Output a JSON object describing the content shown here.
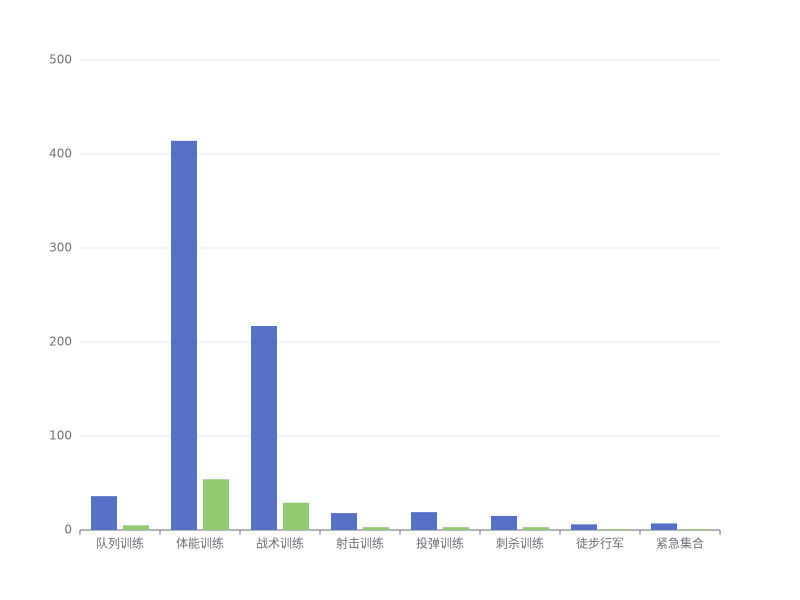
{
  "chart_data": {
    "type": "bar",
    "categories": [
      "队列训练",
      "体能训练",
      "战术训练",
      "射击训练",
      "投弹训练",
      "刺杀训练",
      "徒步行军",
      "紧急集合"
    ],
    "series": [
      {
        "color": "#5470c6",
        "values": [
          36,
          414,
          217,
          18,
          19,
          15,
          6,
          7
        ]
      },
      {
        "color": "#91cc75",
        "values": [
          5,
          54,
          29,
          3,
          3,
          3,
          1,
          1
        ]
      }
    ],
    "ylim": [
      0,
      500
    ],
    "yticks": [
      0,
      100,
      200,
      300,
      400,
      500
    ],
    "grid": true
  }
}
